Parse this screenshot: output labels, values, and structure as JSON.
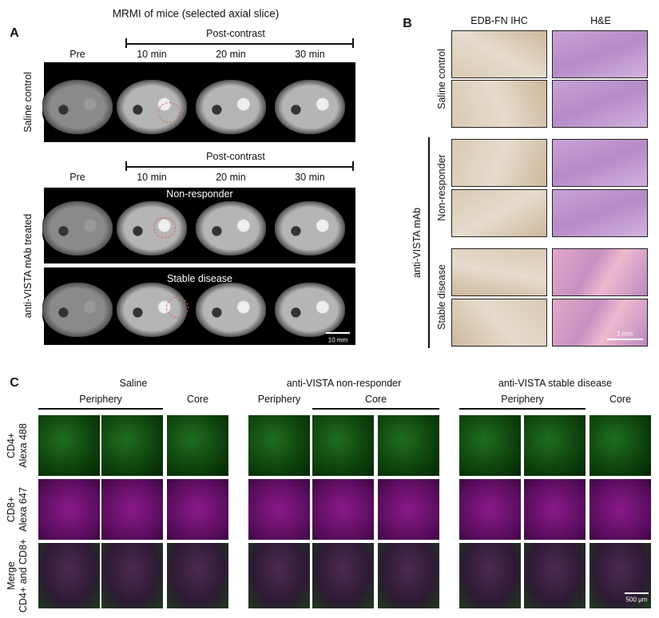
{
  "panel_a": {
    "label": "A",
    "title": "MRMI of mice (selected axial slice)",
    "header": "Post-contrast",
    "timepoints": [
      "Pre",
      "10 min",
      "20 min",
      "30 min"
    ],
    "control_label": "Saline control",
    "treated_label": "anti-VISTA mAb treated",
    "subgroups": [
      "Non-responder",
      "Stable disease"
    ],
    "scale_bar": "10 mm"
  },
  "panel_b": {
    "label": "B",
    "columns": [
      "EDB-FN IHC",
      "H&E"
    ],
    "control_label": "Saline control",
    "treated_label": "anti-VISTA mAb",
    "subgroups": [
      "Non-responder",
      "Stable disease"
    ],
    "scale_bar": "1 mm"
  },
  "panel_c": {
    "label": "C",
    "groups": [
      {
        "title": "Saline",
        "regions": [
          "Periphery",
          "Core"
        ]
      },
      {
        "title": "anti-VISTA non-responder",
        "regions": [
          "Periphery",
          "Core"
        ]
      },
      {
        "title": "anti-VISTA stable disease",
        "regions": [
          "Periphery",
          "Core"
        ]
      }
    ],
    "rows": [
      [
        "CD4+",
        "Alexa 488"
      ],
      [
        "CD8+",
        "Alexa 647"
      ],
      [
        "Merge",
        "CD4+ and CD8+"
      ]
    ],
    "scale_bar": "500 μm"
  }
}
